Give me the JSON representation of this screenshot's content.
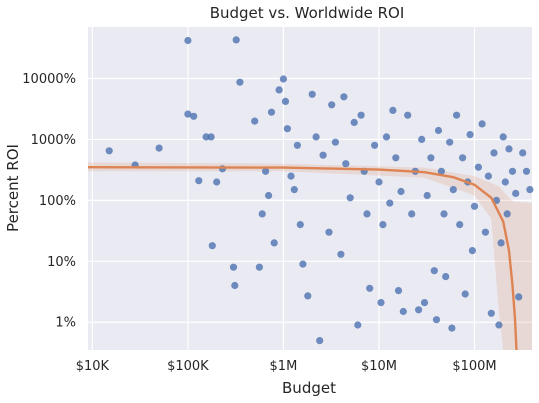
{
  "colors": {
    "background": "#eaeaf2",
    "grid": "#ffffff",
    "points": "#4c72b0",
    "fit": "#dd8452"
  },
  "chart_data": {
    "type": "scatter",
    "title": "Budget vs. Worldwide ROI",
    "xlabel": "Budget",
    "ylabel": "Percent ROI",
    "x_scale": "log",
    "y_scale": "log",
    "xlim": [
      9000,
      400000000
    ],
    "ylim": [
      0.35,
      70000
    ],
    "x_ticks": [
      {
        "value": 10000,
        "label": "$10K"
      },
      {
        "value": 100000,
        "label": "$100K"
      },
      {
        "value": 1000000,
        "label": "$1M"
      },
      {
        "value": 10000000,
        "label": "$10M"
      },
      {
        "value": 100000000,
        "label": "$100M"
      }
    ],
    "y_ticks": [
      {
        "value": 1,
        "label": "1%"
      },
      {
        "value": 10,
        "label": "10%"
      },
      {
        "value": 100,
        "label": "100%"
      },
      {
        "value": 1000,
        "label": "1000%"
      },
      {
        "value": 10000,
        "label": "10000%"
      }
    ],
    "grid": true,
    "points": [
      [
        15000,
        650
      ],
      [
        28000,
        380
      ],
      [
        50000,
        720
      ],
      [
        100000,
        42000
      ],
      [
        100000,
        2600
      ],
      [
        115000,
        2400
      ],
      [
        130000,
        210
      ],
      [
        155000,
        1100
      ],
      [
        175000,
        1100
      ],
      [
        180000,
        18
      ],
      [
        200000,
        200
      ],
      [
        230000,
        330
      ],
      [
        300000,
        8
      ],
      [
        310000,
        4
      ],
      [
        320000,
        43000
      ],
      [
        350000,
        8700
      ],
      [
        500000,
        2000
      ],
      [
        560000,
        8
      ],
      [
        600000,
        60
      ],
      [
        650000,
        300
      ],
      [
        700000,
        120
      ],
      [
        750000,
        2800
      ],
      [
        800000,
        20
      ],
      [
        900000,
        6500
      ],
      [
        1000000,
        9800
      ],
      [
        1050000,
        4200
      ],
      [
        1100000,
        1500
      ],
      [
        1200000,
        250
      ],
      [
        1300000,
        150
      ],
      [
        1400000,
        800
      ],
      [
        1500000,
        40
      ],
      [
        1600000,
        9
      ],
      [
        1800000,
        2.7
      ],
      [
        2000000,
        5500
      ],
      [
        2200000,
        1100
      ],
      [
        2400000,
        0.5
      ],
      [
        2600000,
        550
      ],
      [
        3000000,
        30
      ],
      [
        3200000,
        3700
      ],
      [
        3500000,
        900
      ],
      [
        4000000,
        13
      ],
      [
        4300000,
        5000
      ],
      [
        4500000,
        400
      ],
      [
        5000000,
        110
      ],
      [
        5500000,
        1900
      ],
      [
        6000000,
        0.9
      ],
      [
        6500000,
        2500
      ],
      [
        7000000,
        300
      ],
      [
        7500000,
        60
      ],
      [
        8000000,
        3.6
      ],
      [
        9000000,
        800
      ],
      [
        10000000,
        200
      ],
      [
        10500000,
        2.1
      ],
      [
        11000000,
        40
      ],
      [
        12000000,
        1100
      ],
      [
        13000000,
        90
      ],
      [
        14000000,
        3000
      ],
      [
        15000000,
        500
      ],
      [
        16000000,
        3.3
      ],
      [
        17000000,
        140
      ],
      [
        18000000,
        1.5
      ],
      [
        20000000,
        2500
      ],
      [
        22000000,
        60
      ],
      [
        24000000,
        300
      ],
      [
        26000000,
        1.6
      ],
      [
        28000000,
        1000
      ],
      [
        30000000,
        2.1
      ],
      [
        32000000,
        120
      ],
      [
        35000000,
        500
      ],
      [
        38000000,
        7
      ],
      [
        40000000,
        1.1
      ],
      [
        42000000,
        1400
      ],
      [
        45000000,
        300
      ],
      [
        48000000,
        60
      ],
      [
        50000000,
        5.6
      ],
      [
        55000000,
        900
      ],
      [
        58000000,
        0.8
      ],
      [
        60000000,
        150
      ],
      [
        65000000,
        2500
      ],
      [
        70000000,
        40
      ],
      [
        75000000,
        500
      ],
      [
        80000000,
        2.9
      ],
      [
        85000000,
        200
      ],
      [
        90000000,
        1200
      ],
      [
        95000000,
        15
      ],
      [
        100000000,
        80
      ],
      [
        110000000,
        350
      ],
      [
        120000000,
        1800
      ],
      [
        130000000,
        30
      ],
      [
        140000000,
        250
      ],
      [
        150000000,
        1.4
      ],
      [
        160000000,
        600
      ],
      [
        170000000,
        100
      ],
      [
        180000000,
        0.9
      ],
      [
        190000000,
        20
      ],
      [
        200000000,
        1100
      ],
      [
        210000000,
        200
      ],
      [
        220000000,
        60
      ],
      [
        230000000,
        700
      ],
      [
        250000000,
        300
      ],
      [
        270000000,
        130
      ],
      [
        290000000,
        2.6
      ],
      [
        320000000,
        600
      ],
      [
        350000000,
        300
      ],
      [
        380000000,
        150
      ]
    ],
    "fit_line": [
      [
        9000,
        350
      ],
      [
        1000000,
        345
      ],
      [
        10000000,
        320
      ],
      [
        30000000,
        290
      ],
      [
        60000000,
        240
      ],
      [
        100000000,
        180
      ],
      [
        150000000,
        110
      ],
      [
        200000000,
        45
      ],
      [
        230000000,
        15
      ],
      [
        250000000,
        4
      ],
      [
        265000000,
        1.2
      ],
      [
        275000000,
        0.35
      ]
    ],
    "fit_band": {
      "upper": [
        [
          9000,
          420
        ],
        [
          1000000,
          400
        ],
        [
          30000000,
          345
        ],
        [
          100000000,
          250
        ],
        [
          180000000,
          170
        ],
        [
          230000000,
          110
        ],
        [
          260000000,
          95
        ],
        [
          400000000,
          90
        ]
      ],
      "lower": [
        [
          9000,
          300
        ],
        [
          1000000,
          300
        ],
        [
          30000000,
          235
        ],
        [
          100000000,
          120
        ],
        [
          150000000,
          50
        ],
        [
          180000000,
          1.5
        ],
        [
          200000000,
          0.35
        ],
        [
          400000000,
          0.35
        ]
      ]
    }
  }
}
